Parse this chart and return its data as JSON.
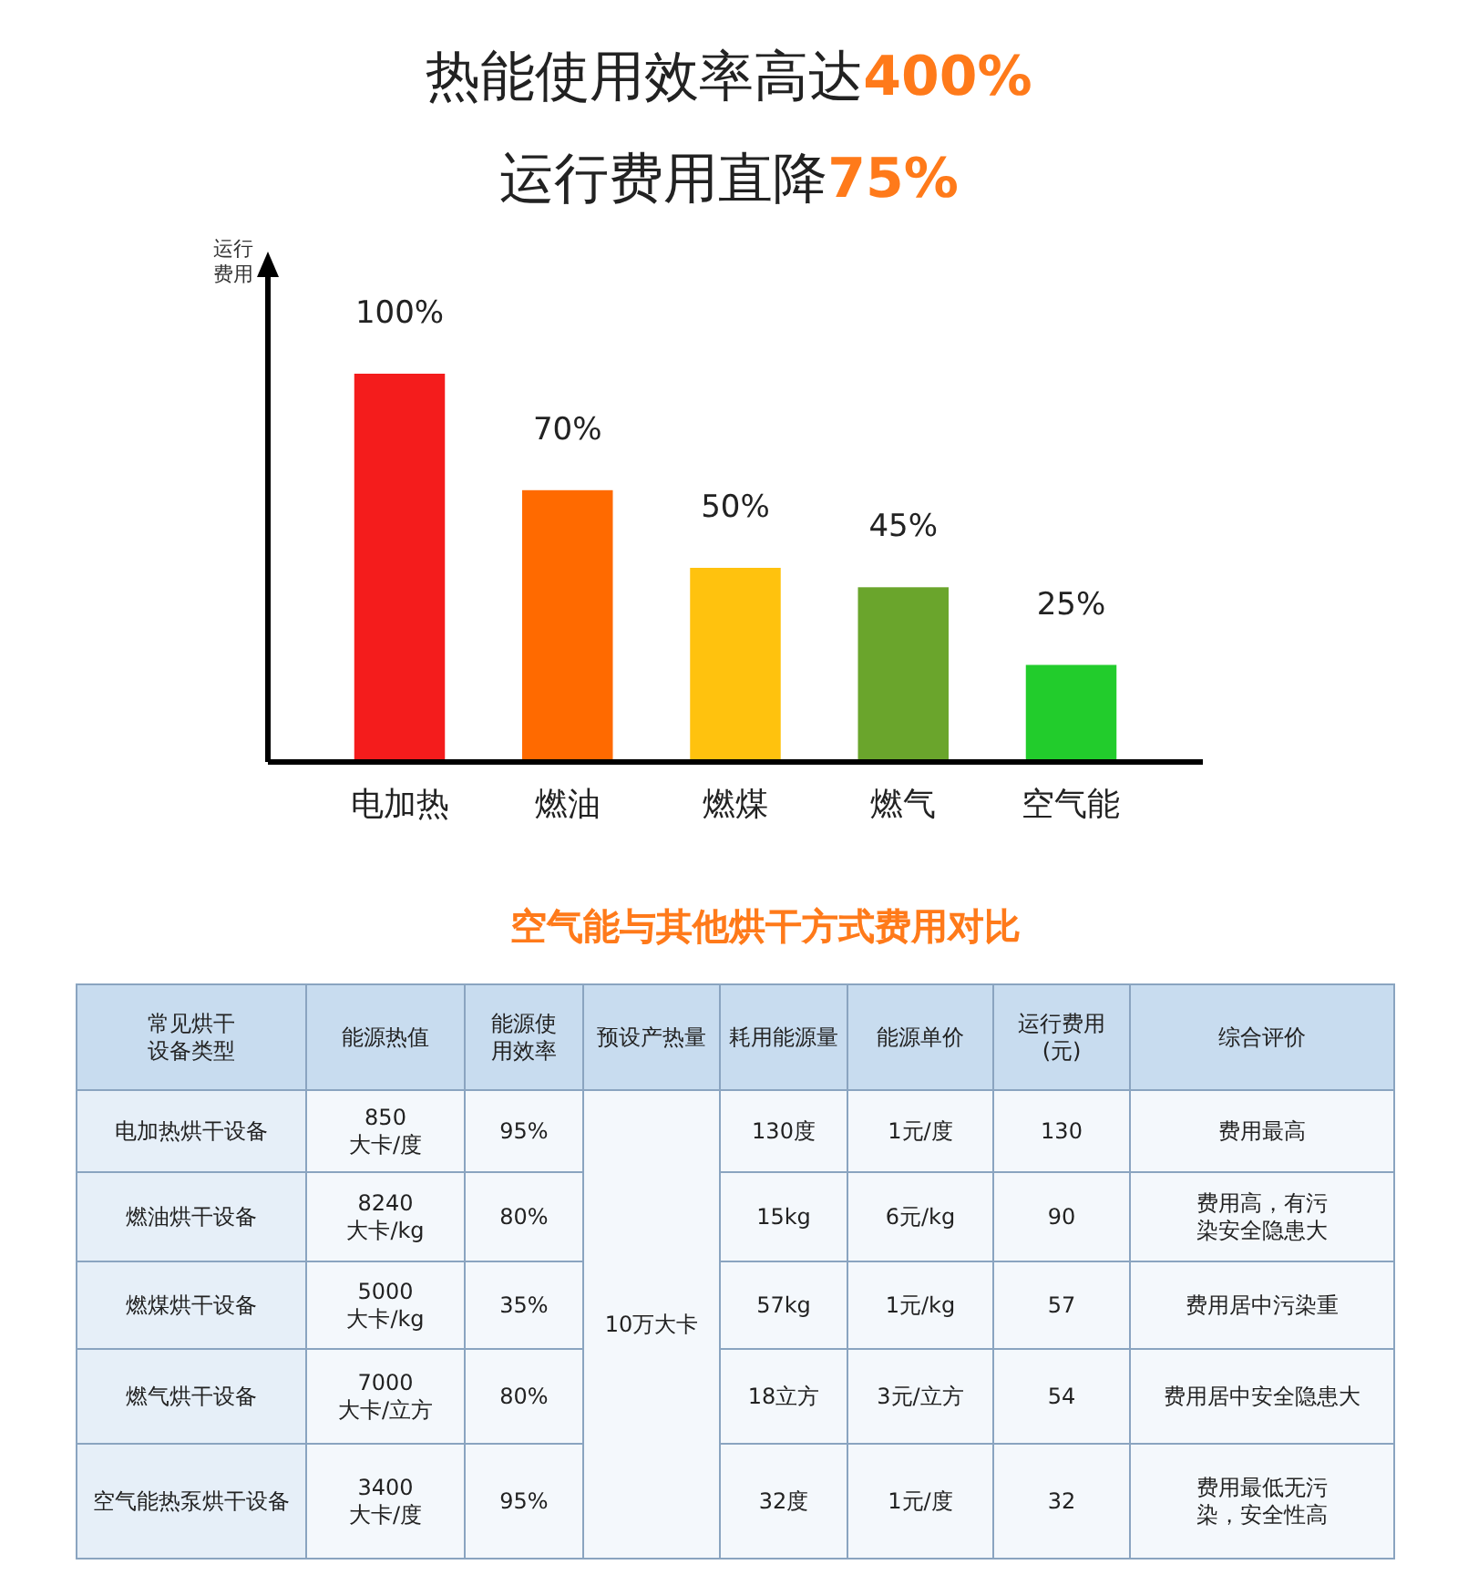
{
  "chart_data": [
    {
      "type": "bar",
      "title": "热能使用效率高达400%",
      "subtitle": "运行费用直降75%",
      "ylabel": "运行费用",
      "categories": [
        "电加热",
        "燃油",
        "燃煤",
        "燃气",
        "空气能"
      ],
      "values": [
        100,
        70,
        50,
        45,
        25
      ],
      "value_labels": [
        "100%",
        "70%",
        "50%",
        "45%",
        "25%"
      ],
      "colors": [
        "#f41c1c",
        "#ff6a00",
        "#ffc20e",
        "#6aa52c",
        "#22cc2c"
      ]
    },
    {
      "type": "other",
      "title": "空气能与其他烘干方式费用对比",
      "categories": [
        "常见烘干设备类型",
        "能源热值",
        "能源使用效率",
        "预设产热量",
        "耗用能源量",
        "能源单价",
        "运行费用\n(元)",
        "综合评价"
      ],
      "cell_labels": [
        [
          "电加热烘干设备",
          "850\n大卡/度",
          "95%",
          "10万大卡",
          "130度",
          "1元/度",
          "130",
          "费用最高"
        ],
        [
          "燃油烘干设备",
          "8240\n大卡/kg",
          "80%",
          null,
          "15kg",
          "6元/kg",
          "90",
          "费用高，有污染安全隐患大"
        ],
        [
          "燃煤烘干设备",
          "5000\n大卡/kg",
          "35%",
          null,
          "57kg",
          "1元/kg",
          "57",
          "费用居中污染重"
        ],
        [
          "燃气烘干设备",
          "7000\n大卡/立方",
          "80%",
          null,
          "18立方",
          "3元/立方",
          "54",
          "费用居中安全隐患大"
        ],
        [
          "空气能热泵烘干设备",
          "3400\n大卡/度",
          "95%",
          null,
          "32度",
          "1元/度",
          "32",
          "费用最低无污染，安全性高"
        ]
      ]
    }
  ]
}
